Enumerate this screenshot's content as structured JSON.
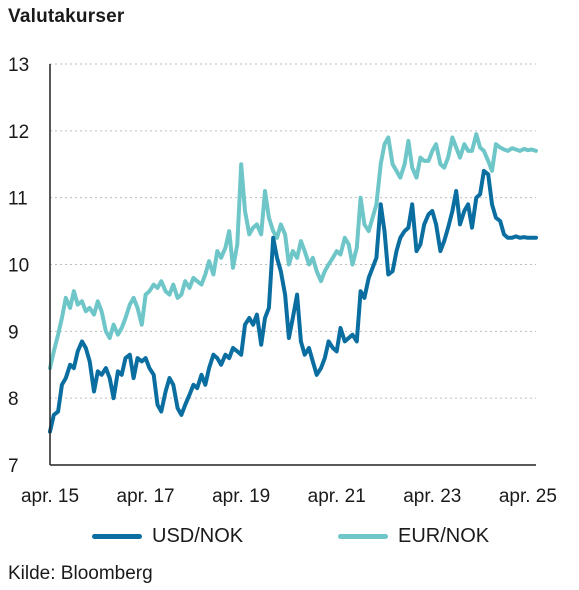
{
  "chart_data": {
    "type": "line",
    "title": "Valutakurser",
    "source": "Kilde: Bloomberg",
    "xlabel": "",
    "ylabel": "",
    "ylim": [
      7,
      13
    ],
    "yticks": [
      7,
      8,
      9,
      10,
      11,
      12,
      13
    ],
    "xlim": [
      2015.25,
      2025.42
    ],
    "xticks": [
      {
        "x": 2015.25,
        "label": "apr. 15"
      },
      {
        "x": 2017.25,
        "label": "apr. 17"
      },
      {
        "x": 2019.25,
        "label": "apr. 19"
      },
      {
        "x": 2021.25,
        "label": "apr. 21"
      },
      {
        "x": 2023.25,
        "label": "apr. 23"
      },
      {
        "x": 2025.25,
        "label": "apr. 25"
      }
    ],
    "grid": "horizontal dotted",
    "legend_position": "bottom",
    "colors": {
      "USD/NOK": "#0b6ea1",
      "EUR/NOK": "#6ec6c8",
      "grid": "#bdbdbd",
      "axis": "#222222"
    },
    "series": [
      {
        "name": "USD/NOK",
        "x": [
          2015.25,
          2015.33,
          2015.42,
          2015.5,
          2015.58,
          2015.67,
          2015.75,
          2015.83,
          2015.92,
          2016.0,
          2016.08,
          2016.17,
          2016.25,
          2016.33,
          2016.42,
          2016.5,
          2016.58,
          2016.67,
          2016.75,
          2016.83,
          2016.92,
          2017.0,
          2017.08,
          2017.17,
          2017.25,
          2017.33,
          2017.42,
          2017.5,
          2017.58,
          2017.67,
          2017.75,
          2017.83,
          2017.92,
          2018.0,
          2018.08,
          2018.17,
          2018.25,
          2018.33,
          2018.42,
          2018.5,
          2018.58,
          2018.67,
          2018.75,
          2018.83,
          2018.92,
          2019.0,
          2019.08,
          2019.17,
          2019.25,
          2019.33,
          2019.42,
          2019.5,
          2019.58,
          2019.67,
          2019.75,
          2019.83,
          2019.92,
          2020.0,
          2020.08,
          2020.17,
          2020.25,
          2020.33,
          2020.42,
          2020.5,
          2020.58,
          2020.67,
          2020.75,
          2020.83,
          2020.92,
          2021.0,
          2021.08,
          2021.17,
          2021.25,
          2021.33,
          2021.42,
          2021.5,
          2021.58,
          2021.67,
          2021.75,
          2021.83,
          2021.92,
          2022.0,
          2022.08,
          2022.17,
          2022.25,
          2022.33,
          2022.42,
          2022.5,
          2022.58,
          2022.67,
          2022.75,
          2022.83,
          2022.92,
          2023.0,
          2023.08,
          2023.17,
          2023.25,
          2023.33,
          2023.42,
          2023.5,
          2023.58,
          2023.67,
          2023.75,
          2023.83,
          2023.92,
          2024.0,
          2024.08,
          2024.17,
          2024.25,
          2024.33,
          2024.42,
          2024.5,
          2024.58,
          2024.67,
          2024.75,
          2024.83,
          2024.92,
          2025.0,
          2025.08,
          2025.17,
          2025.25,
          2025.33,
          2025.42
        ],
        "values": [
          7.5,
          7.75,
          7.8,
          8.2,
          8.3,
          8.5,
          8.45,
          8.7,
          8.85,
          8.75,
          8.55,
          8.1,
          8.4,
          8.35,
          8.45,
          8.3,
          8.0,
          8.4,
          8.35,
          8.6,
          8.65,
          8.3,
          8.6,
          8.55,
          8.6,
          8.45,
          8.35,
          7.9,
          7.8,
          8.1,
          8.3,
          8.2,
          7.85,
          7.75,
          7.9,
          8.05,
          8.2,
          8.15,
          8.35,
          8.2,
          8.45,
          8.65,
          8.6,
          8.5,
          8.65,
          8.6,
          8.75,
          8.7,
          8.65,
          9.1,
          9.2,
          9.1,
          9.25,
          8.8,
          9.2,
          9.35,
          10.4,
          10.1,
          9.9,
          9.55,
          8.9,
          9.2,
          9.55,
          8.85,
          8.65,
          8.75,
          8.55,
          8.35,
          8.45,
          8.6,
          8.85,
          8.75,
          8.7,
          9.05,
          8.85,
          8.9,
          8.95,
          8.85,
          9.6,
          9.5,
          9.8,
          9.95,
          10.1,
          10.9,
          10.5,
          9.85,
          9.9,
          10.2,
          10.4,
          10.5,
          10.55,
          10.9,
          10.2,
          10.3,
          10.6,
          10.75,
          10.8,
          10.6,
          10.2,
          10.35,
          10.55,
          10.8,
          11.1,
          10.6,
          10.8,
          10.9,
          10.55,
          11.0,
          11.05,
          11.4,
          11.35,
          10.9,
          10.7,
          10.65,
          10.45,
          10.4,
          10.4,
          10.42,
          10.4,
          10.41,
          10.4,
          10.4,
          10.4
        ]
      },
      {
        "name": "EUR/NOK",
        "x": [
          2015.25,
          2015.33,
          2015.42,
          2015.5,
          2015.58,
          2015.67,
          2015.75,
          2015.83,
          2015.92,
          2016.0,
          2016.08,
          2016.17,
          2016.25,
          2016.33,
          2016.42,
          2016.5,
          2016.58,
          2016.67,
          2016.75,
          2016.83,
          2016.92,
          2017.0,
          2017.08,
          2017.17,
          2017.25,
          2017.33,
          2017.42,
          2017.5,
          2017.58,
          2017.67,
          2017.75,
          2017.83,
          2017.92,
          2018.0,
          2018.08,
          2018.17,
          2018.25,
          2018.33,
          2018.42,
          2018.5,
          2018.58,
          2018.67,
          2018.75,
          2018.83,
          2018.92,
          2019.0,
          2019.08,
          2019.17,
          2019.25,
          2019.33,
          2019.42,
          2019.5,
          2019.58,
          2019.67,
          2019.75,
          2019.83,
          2019.92,
          2020.0,
          2020.08,
          2020.17,
          2020.25,
          2020.33,
          2020.42,
          2020.5,
          2020.58,
          2020.67,
          2020.75,
          2020.83,
          2020.92,
          2021.0,
          2021.08,
          2021.17,
          2021.25,
          2021.33,
          2021.42,
          2021.5,
          2021.58,
          2021.67,
          2021.75,
          2021.83,
          2021.92,
          2022.0,
          2022.08,
          2022.17,
          2022.25,
          2022.33,
          2022.42,
          2022.5,
          2022.58,
          2022.67,
          2022.75,
          2022.83,
          2022.92,
          2023.0,
          2023.08,
          2023.17,
          2023.25,
          2023.33,
          2023.42,
          2023.5,
          2023.58,
          2023.67,
          2023.75,
          2023.83,
          2023.92,
          2024.0,
          2024.08,
          2024.17,
          2024.25,
          2024.33,
          2024.42,
          2024.5,
          2024.58,
          2024.67,
          2024.75,
          2024.83,
          2024.92,
          2025.0,
          2025.08,
          2025.17,
          2025.25,
          2025.33,
          2025.42
        ],
        "values": [
          8.45,
          8.7,
          8.95,
          9.2,
          9.5,
          9.35,
          9.6,
          9.4,
          9.45,
          9.3,
          9.35,
          9.25,
          9.45,
          9.3,
          9.0,
          8.9,
          9.1,
          8.95,
          9.05,
          9.2,
          9.4,
          9.5,
          9.35,
          9.1,
          9.55,
          9.6,
          9.7,
          9.65,
          9.75,
          9.6,
          9.55,
          9.7,
          9.5,
          9.55,
          9.75,
          9.65,
          9.8,
          9.75,
          9.7,
          9.85,
          10.05,
          9.85,
          10.2,
          10.1,
          10.25,
          10.5,
          9.95,
          10.3,
          11.5,
          10.8,
          10.45,
          10.55,
          10.6,
          10.45,
          11.1,
          10.7,
          10.5,
          10.4,
          10.6,
          10.45,
          10.0,
          10.2,
          10.1,
          10.35,
          10.2,
          10.0,
          10.1,
          9.9,
          9.75,
          9.9,
          10.0,
          10.1,
          10.2,
          10.15,
          10.4,
          10.3,
          10.0,
          10.25,
          11.0,
          10.6,
          10.5,
          10.7,
          10.9,
          11.5,
          11.8,
          11.9,
          11.5,
          11.4,
          11.3,
          11.5,
          11.85,
          11.45,
          11.3,
          11.6,
          11.55,
          11.55,
          11.7,
          11.8,
          11.5,
          11.45,
          11.6,
          11.9,
          11.75,
          11.6,
          11.8,
          11.7,
          11.7,
          11.95,
          11.75,
          11.7,
          11.55,
          11.4,
          11.8,
          11.75,
          11.72,
          11.7,
          11.74,
          11.72,
          11.7,
          11.73,
          11.71,
          11.72,
          11.7
        ]
      }
    ]
  }
}
